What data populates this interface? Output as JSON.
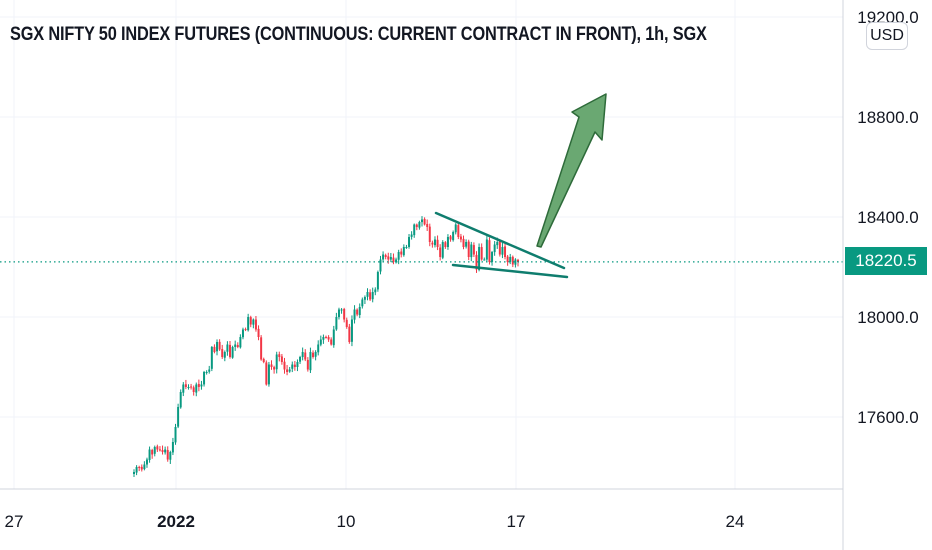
{
  "title": "SGX NIFTY 50 INDEX FUTURES (CONTINUOUS: CURRENT CONTRACT IN FRONT), 1h, SGX",
  "currency": "USD",
  "current_price": "18220.5",
  "colors": {
    "up": "#089981",
    "down": "#f23645",
    "price_line": "#089981",
    "trendline": "#0f7d6e",
    "arrow_fill": "#6aa872",
    "arrow_stroke": "#2e6b3a",
    "grid": "#f0f3fa"
  },
  "chart_data": {
    "type": "candlestick",
    "title": "SGX NIFTY 50 INDEX FUTURES (CONTINUOUS: CURRENT CONTRACT IN FRONT), 1h, SGX",
    "y_ticks": [
      "17600.0",
      "18000.0",
      "18400.0",
      "18800.0",
      "19200.0"
    ],
    "y_tick_values": [
      17600,
      18000,
      18400,
      18800,
      19200
    ],
    "x_ticks": [
      {
        "label": "27",
        "bold": false
      },
      {
        "label": "2022",
        "bold": true
      },
      {
        "label": "10",
        "bold": false
      },
      {
        "label": "17",
        "bold": false
      },
      {
        "label": "24",
        "bold": false
      }
    ],
    "ylim": [
      17320,
      19220
    ],
    "last_price": 18220.5,
    "series": [
      {
        "close": [
          17380,
          17400,
          17400,
          17390,
          17410,
          17430,
          17470,
          17450,
          17480,
          17470,
          17470,
          17460,
          17470,
          17430,
          17460,
          17500,
          17560,
          17640,
          17700,
          17730,
          17720,
          17720,
          17720,
          17700,
          17730,
          17720,
          17730,
          17780,
          17780,
          17790,
          17880,
          17860,
          17900,
          17870,
          17840,
          17860,
          17890,
          17840,
          17880,
          17890,
          17880,
          17920,
          17950,
          17950,
          18000,
          17970,
          17990,
          17950,
          17920,
          17830,
          17820,
          17730,
          17810,
          17800,
          17790,
          17850,
          17840,
          17820,
          17790,
          17780,
          17790,
          17810,
          17800,
          17820,
          17840,
          17860,
          17830,
          17790,
          17860,
          17840,
          17860,
          17890,
          17910,
          17920,
          17920,
          17910,
          17890,
          17950,
          18000,
          18030,
          18030,
          17990,
          17960,
          17900,
          17990,
          18030,
          18010,
          18040,
          18070,
          18080,
          18100,
          18070,
          18100,
          18110,
          18180,
          18230,
          18250,
          18240,
          18230,
          18240,
          18220,
          18230,
          18260,
          18250,
          18280,
          18280,
          18320,
          18330,
          18370,
          18360,
          18380,
          18390,
          18370,
          18360,
          18300,
          18290,
          18310,
          18280,
          18240,
          18300,
          18280,
          18320,
          18310,
          18340,
          18370,
          18320,
          18310,
          18280,
          18300,
          18240,
          18290,
          18250,
          18190,
          18280,
          18230,
          18230,
          18310,
          18220,
          18260,
          18290,
          18300,
          18250,
          18280,
          18240,
          18220,
          18240,
          18210,
          18230,
          18220
        ]
      }
    ],
    "annotations": [
      {
        "type": "trendline",
        "from": [
          18400,
          "start"
        ],
        "to": [
          18200,
          "end"
        ]
      },
      {
        "type": "trendline",
        "from": [
          18215,
          "start"
        ],
        "to": [
          18160,
          "end"
        ]
      },
      {
        "type": "arrow",
        "direction": "up"
      }
    ]
  }
}
